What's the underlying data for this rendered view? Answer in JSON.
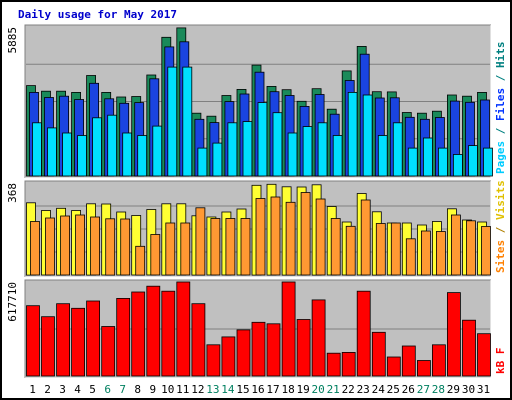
{
  "chart_data": {
    "type": "bar",
    "title": "Daily usage for May 2017",
    "categories": [
      "1",
      "2",
      "3",
      "4",
      "5",
      "6",
      "7",
      "8",
      "9",
      "10",
      "11",
      "12",
      "13",
      "14",
      "15",
      "16",
      "17",
      "18",
      "19",
      "20",
      "21",
      "22",
      "23",
      "24",
      "25",
      "26",
      "27",
      "28",
      "29",
      "30",
      "31"
    ],
    "weekend_days": [
      "6",
      "7",
      "13",
      "14",
      "20",
      "21",
      "27",
      "28"
    ],
    "panels": [
      {
        "id": "hits",
        "max_label": "5885",
        "ymax": 5885,
        "legend": [
          {
            "text": "Pages",
            "color": "#00ccff"
          },
          {
            "text": " / ",
            "color": "#008080"
          },
          {
            "text": "Files",
            "color": "#0033ff"
          },
          {
            "text": " / ",
            "color": "#008080"
          },
          {
            "text": "Hits",
            "color": "#008080"
          }
        ],
        "series": [
          {
            "name": "Hits",
            "color": "#1a8a5a",
            "values": [
              3570,
              3350,
              3350,
              3300,
              3970,
              3300,
              3120,
              3140,
              3990,
              5480,
              5850,
              2480,
              2360,
              3180,
              3420,
              4380,
              3540,
              3410,
              2950,
              3450,
              2640,
              4150,
              5120,
              3330,
              3320,
              2510,
              2480,
              2560,
              3200,
              3150,
              3300
            ]
          },
          {
            "name": "Files",
            "color": "#1a44e0",
            "values": [
              3300,
              3100,
              3150,
              3020,
              3660,
              3050,
              2870,
              2900,
              3840,
              5100,
              5300,
              2240,
              2110,
              2940,
              3240,
              4100,
              3330,
              3180,
              2750,
              3220,
              2440,
              3770,
              4810,
              3080,
              3090,
              2320,
              2240,
              2310,
              2960,
              2910,
              3000
            ]
          },
          {
            "name": "Pages",
            "color": "#00e0ff",
            "values": [
              2100,
              1900,
              1700,
              1600,
              2300,
              2400,
              1700,
              1600,
              1970,
              4300,
              4300,
              1100,
              1300,
              2100,
              2150,
              2900,
              2500,
              1700,
              1950,
              2100,
              1600,
              3300,
              3200,
              1600,
              2100,
              1100,
              1500,
              1100,
              850,
              1200,
              1100
            ]
          }
        ]
      },
      {
        "id": "visits",
        "max_label": "368",
        "ymax": 368,
        "legend": [
          {
            "text": "Sites",
            "color": "#ff8000"
          },
          {
            "text": " / ",
            "color": "#b08000"
          },
          {
            "text": "Visits",
            "color": "#e0c000"
          }
        ],
        "series": [
          {
            "name": "Visits",
            "color": "#ffff33",
            "values": [
              289,
              258,
              267,
              258,
              285,
              284,
              252,
              238,
              262,
              285,
              285,
              237,
              232,
              252,
              264,
              359,
              363,
              353,
              352,
              361,
              274,
              212,
              326,
              253,
              208,
              208,
              200,
              214,
              265,
              220,
              212
            ]
          },
          {
            "name": "Sites",
            "color": "#ff9933",
            "values": [
              214,
              228,
              236,
              240,
              232,
              225,
              224,
              115,
              162,
              208,
              208,
              269,
              226,
              226,
              226,
              306,
              312,
              291,
              330,
              304,
              226,
              195,
              300,
              206,
              208,
              145,
              176,
              174,
              240,
              217,
              194
            ]
          }
        ]
      },
      {
        "id": "kbytes",
        "max_label": "617710",
        "ymax": 617710,
        "legend": [
          {
            "text": "kB F",
            "color": "#ff0000"
          }
        ],
        "series": [
          {
            "name": "kB F",
            "color": "#ff0000",
            "values": [
              462000,
              390000,
              475000,
              445000,
              493000,
              325000,
              510000,
              552000,
              590000,
              557000,
              618000,
              475000,
              205000,
              257000,
              303000,
              353000,
              343000,
              618000,
              371000,
              500000,
              150000,
              155000,
              557000,
              287000,
              125000,
              197000,
              102000,
              205000,
              548000,
              367000,
              278000
            ]
          }
        ]
      }
    ]
  }
}
